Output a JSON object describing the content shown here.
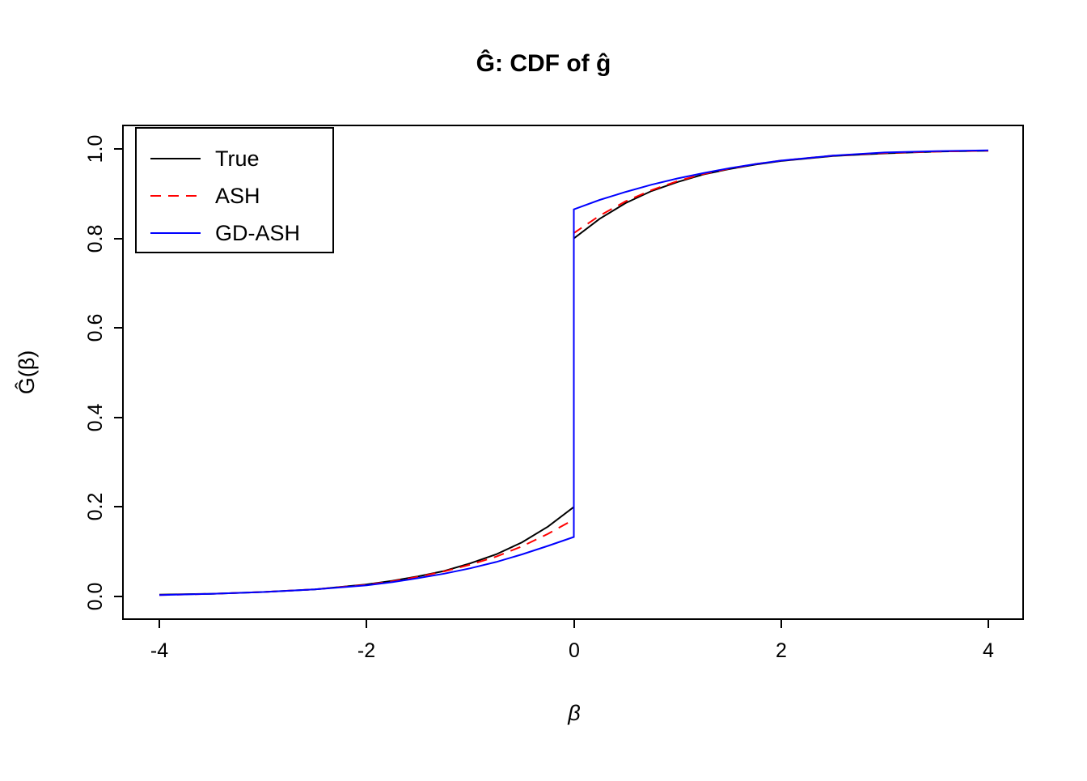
{
  "chart_data": {
    "type": "line",
    "title": "Ĝ: CDF of ĝ",
    "xlabel": "β",
    "ylabel": "Ĝ(β)",
    "xlim": [
      -4,
      4
    ],
    "ylim": [
      0,
      1
    ],
    "grid": false,
    "legend_position": "top-left",
    "x_tick_labels": [
      "-4",
      "-2",
      "0",
      "2",
      "4"
    ],
    "x_tick_values": [
      -4,
      -2,
      0,
      2,
      4
    ],
    "y_tick_labels": [
      "0.0",
      "0.2",
      "0.4",
      "0.6",
      "0.8",
      "1.0"
    ],
    "y_tick_values": [
      0,
      0.2,
      0.4,
      0.6,
      0.8,
      1.0
    ],
    "note": "Mixture CDF with a point mass at beta=0; duplicated x=0 entries encode the vertical jump",
    "series": [
      {
        "name": "True",
        "color": "#000000",
        "dash": "solid",
        "x": [
          -4,
          -3.5,
          -3,
          -2.5,
          -2,
          -1.75,
          -1.5,
          -1.25,
          -1,
          -0.75,
          -0.5,
          -0.25,
          0,
          0,
          0.25,
          0.5,
          0.75,
          1,
          1.25,
          1.5,
          1.75,
          2,
          2.5,
          3,
          3.5,
          4
        ],
        "y": [
          0.004,
          0.006,
          0.01,
          0.016,
          0.027,
          0.035,
          0.045,
          0.057,
          0.074,
          0.094,
          0.121,
          0.156,
          0.2,
          0.8,
          0.844,
          0.879,
          0.906,
          0.926,
          0.943,
          0.955,
          0.965,
          0.973,
          0.984,
          0.99,
          0.994,
          0.996
        ]
      },
      {
        "name": "ASH",
        "color": "#FF0000",
        "dash": "dashed",
        "x": [
          -4,
          -3.5,
          -3,
          -2.5,
          -2,
          -1.75,
          -1.5,
          -1.25,
          -1,
          -0.75,
          -0.5,
          -0.25,
          0,
          0,
          0.25,
          0.5,
          0.75,
          1,
          1.25,
          1.5,
          1.75,
          2,
          2.5,
          3,
          3.5,
          4
        ],
        "y": [
          0.003,
          0.006,
          0.01,
          0.016,
          0.026,
          0.034,
          0.044,
          0.056,
          0.071,
          0.089,
          0.112,
          0.14,
          0.172,
          0.812,
          0.851,
          0.883,
          0.908,
          0.928,
          0.944,
          0.956,
          0.966,
          0.974,
          0.985,
          0.991,
          0.994,
          0.996
        ]
      },
      {
        "name": "GD-ASH",
        "color": "#0000FF",
        "dash": "solid",
        "x": [
          -4,
          -3.5,
          -3,
          -2.5,
          -2,
          -1.75,
          -1.5,
          -1.25,
          -1,
          -0.75,
          -0.5,
          -0.25,
          0,
          0,
          0.25,
          0.5,
          0.75,
          1,
          1.25,
          1.5,
          1.75,
          2,
          2.5,
          3,
          3.5,
          4
        ],
        "y": [
          0.003,
          0.006,
          0.01,
          0.016,
          0.025,
          0.032,
          0.041,
          0.051,
          0.063,
          0.077,
          0.094,
          0.113,
          0.133,
          0.865,
          0.886,
          0.904,
          0.92,
          0.934,
          0.946,
          0.957,
          0.966,
          0.974,
          0.985,
          0.992,
          0.995,
          0.997
        ]
      }
    ]
  }
}
